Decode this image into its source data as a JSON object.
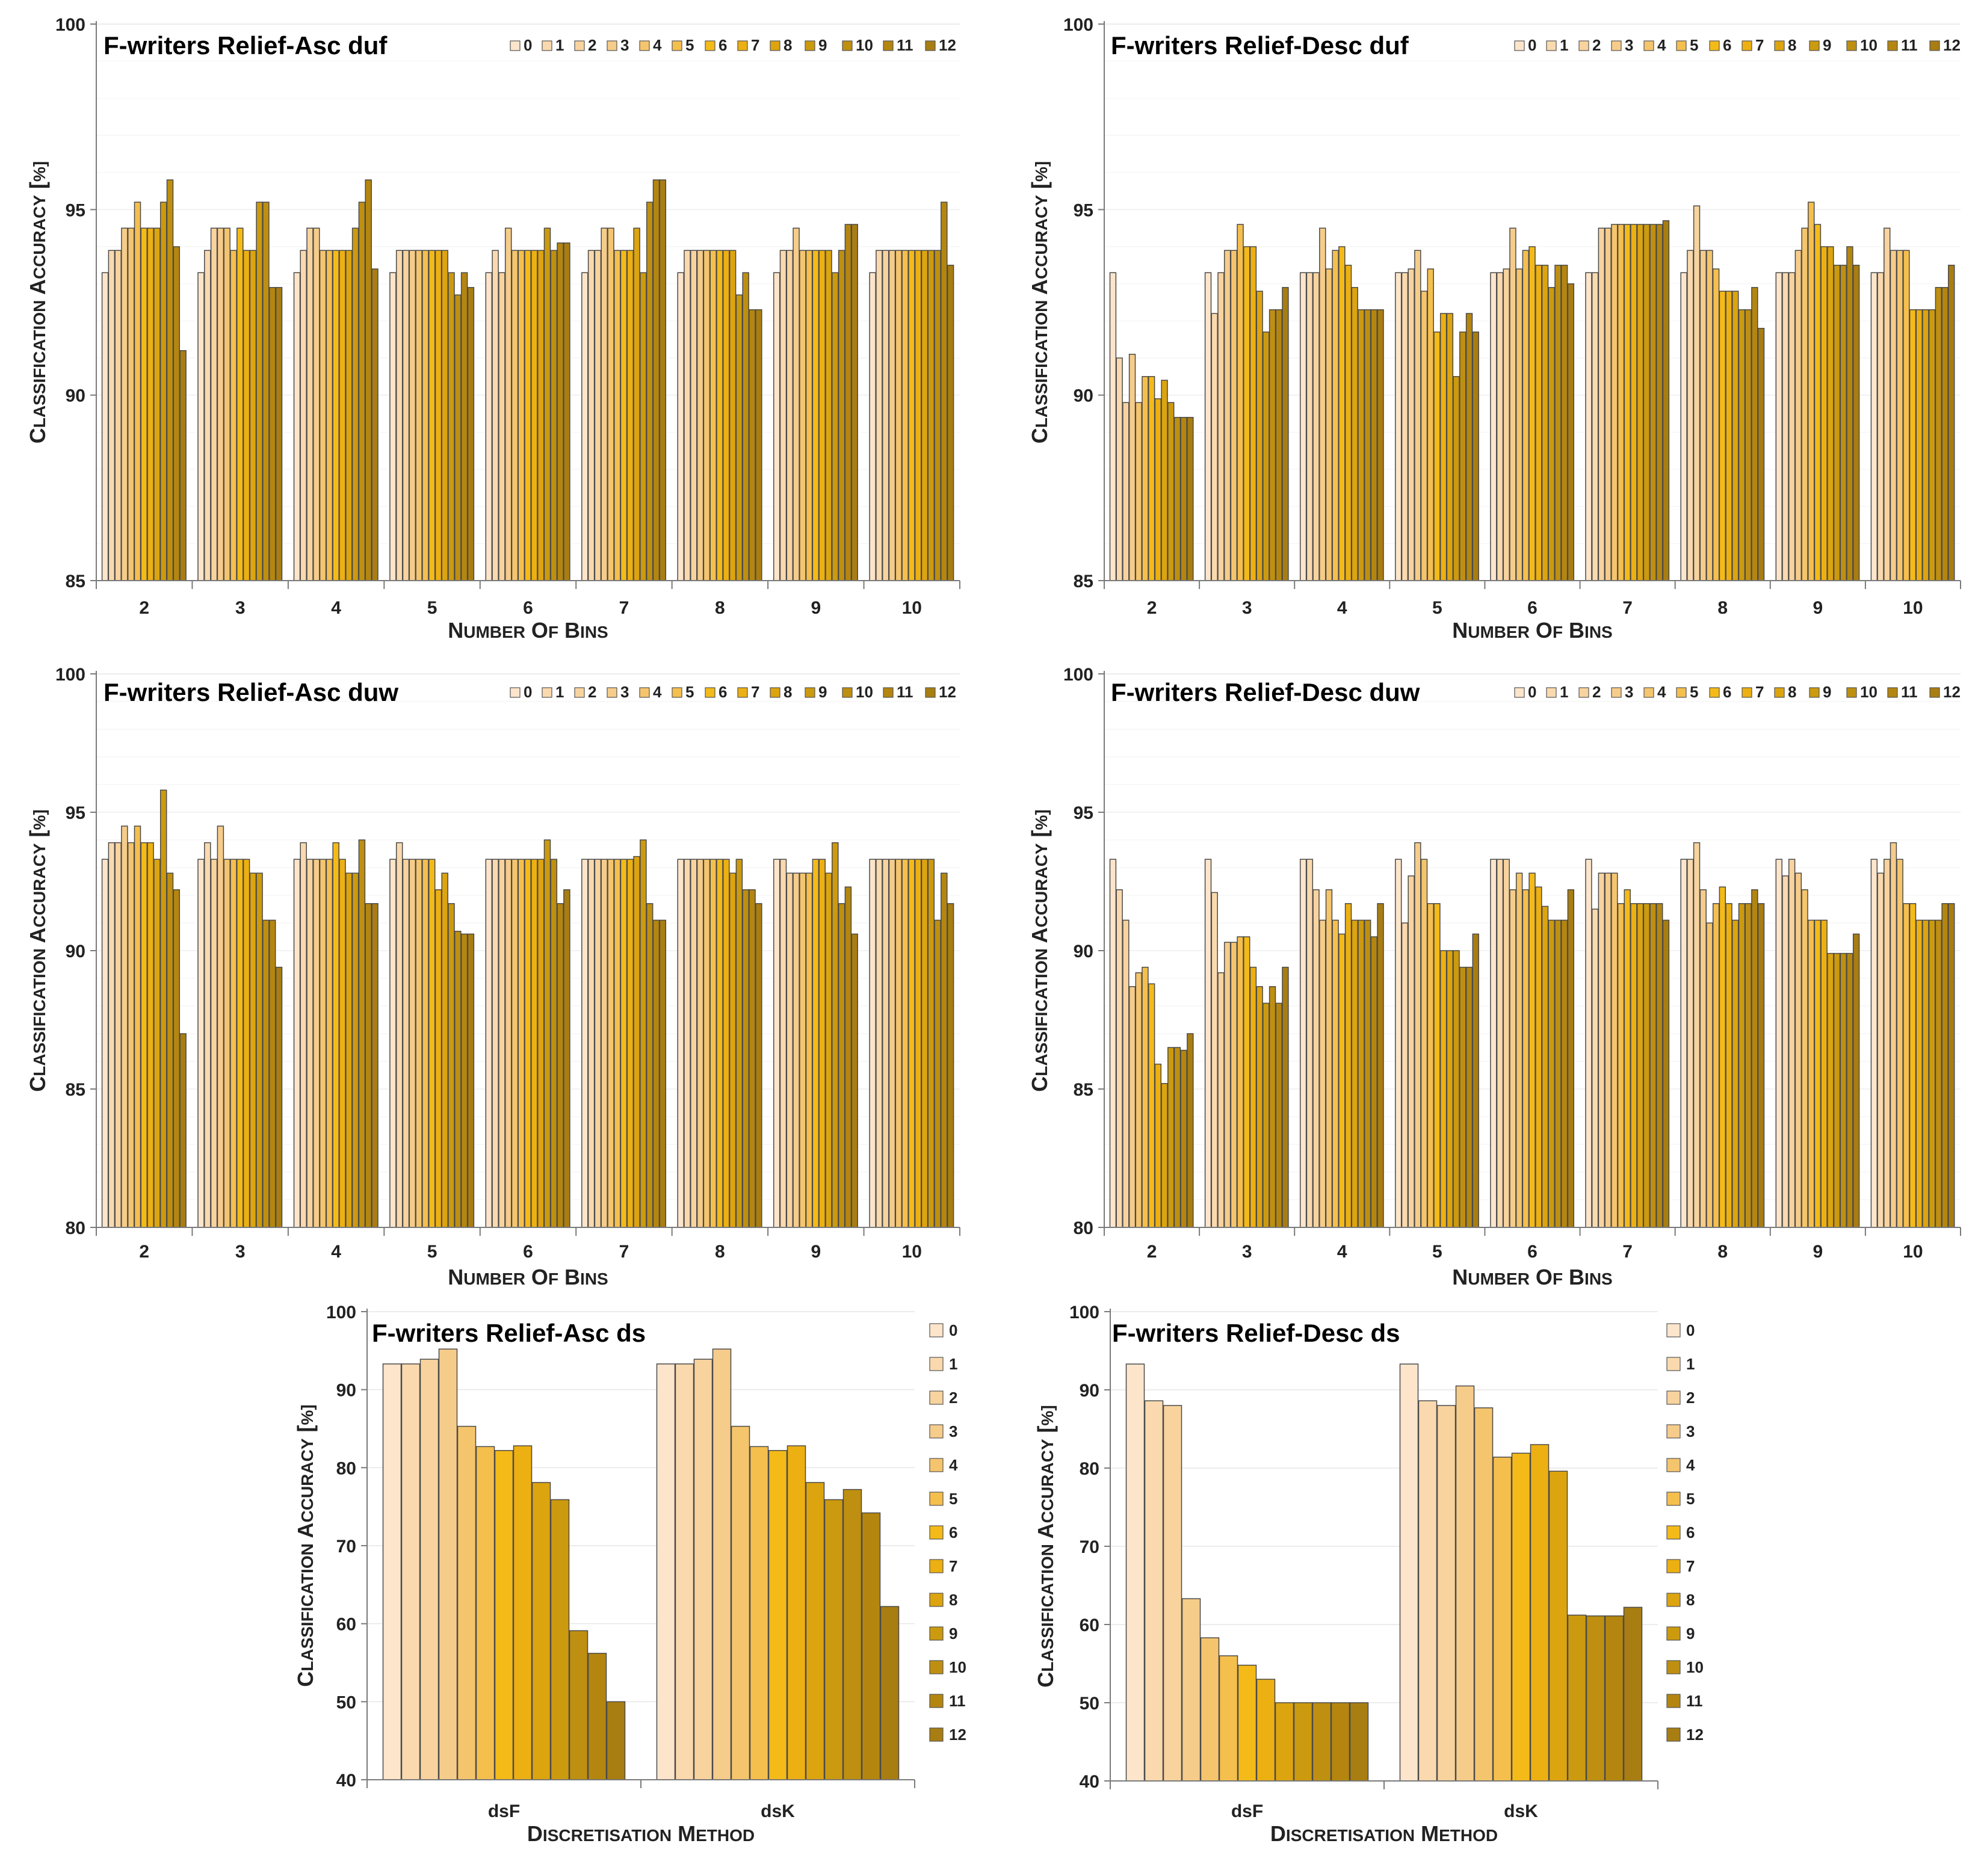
{
  "palette": [
    "#FCE5CB",
    "#FAD9AE",
    "#F8D39E",
    "#F6CC8A",
    "#F5C56D",
    "#F5BF4E",
    "#F4BA18",
    "#EDB012",
    "#DCA40F",
    "#CC9A0E",
    "#BE8F10",
    "#B48610",
    "#A87D12"
  ],
  "chart_data": [
    {
      "type": "bar",
      "title": "F-writers Relief-Asc duf",
      "xlabel": "Number of bins",
      "ylabel": "Classification accuracy [%]",
      "ylim": [
        85,
        100
      ],
      "yticks": [
        85,
        90,
        95,
        100
      ],
      "legend_position": "top-right",
      "categories": [
        "2",
        "3",
        "4",
        "5",
        "6",
        "7",
        "8",
        "9",
        "10"
      ],
      "series": [
        {
          "name": "0",
          "values": [
            93.3,
            93.3,
            93.3,
            93.3,
            93.3,
            93.3,
            93.3,
            93.3,
            93.3
          ]
        },
        {
          "name": "1",
          "values": [
            93.9,
            93.9,
            93.9,
            93.9,
            93.9,
            93.9,
            93.9,
            93.9,
            93.9
          ]
        },
        {
          "name": "2",
          "values": [
            93.9,
            94.5,
            94.5,
            93.9,
            93.3,
            93.9,
            93.9,
            93.9,
            93.9
          ]
        },
        {
          "name": "3",
          "values": [
            94.5,
            94.5,
            94.5,
            93.9,
            94.5,
            94.5,
            93.9,
            94.5,
            93.9
          ]
        },
        {
          "name": "4",
          "values": [
            94.5,
            94.5,
            93.9,
            93.9,
            93.9,
            94.5,
            93.9,
            93.9,
            93.9
          ]
        },
        {
          "name": "5",
          "values": [
            95.2,
            93.9,
            93.9,
            93.9,
            93.9,
            93.9,
            93.9,
            93.9,
            93.9
          ]
        },
        {
          "name": "6",
          "values": [
            94.5,
            94.5,
            93.9,
            93.9,
            93.9,
            93.9,
            93.9,
            93.9,
            93.9
          ]
        },
        {
          "name": "7",
          "values": [
            94.5,
            93.9,
            93.9,
            93.9,
            93.9,
            93.9,
            93.9,
            93.9,
            93.9
          ]
        },
        {
          "name": "8",
          "values": [
            94.5,
            93.9,
            93.9,
            93.9,
            93.9,
            94.5,
            93.9,
            93.9,
            93.9
          ]
        },
        {
          "name": "9",
          "values": [
            95.2,
            95.2,
            94.5,
            93.3,
            94.5,
            93.3,
            92.7,
            93.3,
            93.9
          ]
        },
        {
          "name": "10",
          "values": [
            95.8,
            95.2,
            95.2,
            92.7,
            93.9,
            95.2,
            93.3,
            93.9,
            93.9
          ]
        },
        {
          "name": "11",
          "values": [
            94.0,
            92.9,
            95.8,
            93.3,
            94.1,
            95.8,
            92.3,
            94.6,
            95.2
          ]
        },
        {
          "name": "12",
          "values": [
            91.2,
            92.9,
            93.4,
            92.9,
            94.1,
            95.8,
            92.3,
            94.6,
            93.5
          ]
        }
      ]
    },
    {
      "type": "bar",
      "title": "F-writers Relief-Desc duf",
      "xlabel": "Number of bins",
      "ylabel": "Classification accuracy [%]",
      "ylim": [
        85,
        100
      ],
      "yticks": [
        85,
        90,
        95,
        100
      ],
      "legend_position": "top-right",
      "categories": [
        "2",
        "3",
        "4",
        "5",
        "6",
        "7",
        "8",
        "9",
        "10"
      ],
      "series": [
        {
          "name": "0",
          "values": [
            93.3,
            93.3,
            93.3,
            93.3,
            93.3,
            93.3,
            93.3,
            93.3,
            93.3
          ]
        },
        {
          "name": "1",
          "values": [
            91.0,
            92.2,
            93.3,
            93.3,
            93.3,
            93.3,
            93.9,
            93.3,
            93.3
          ]
        },
        {
          "name": "2",
          "values": [
            89.8,
            93.3,
            93.3,
            93.4,
            93.4,
            94.5,
            95.1,
            93.3,
            94.5
          ]
        },
        {
          "name": "3",
          "values": [
            91.1,
            93.9,
            94.5,
            93.9,
            94.5,
            94.5,
            93.9,
            93.9,
            93.9
          ]
        },
        {
          "name": "4",
          "values": [
            89.8,
            93.9,
            93.4,
            92.8,
            93.4,
            94.6,
            93.9,
            94.5,
            93.9
          ]
        },
        {
          "name": "5",
          "values": [
            90.5,
            94.6,
            93.9,
            93.4,
            93.9,
            94.6,
            93.4,
            95.2,
            93.9
          ]
        },
        {
          "name": "6",
          "values": [
            90.5,
            94.0,
            94.0,
            91.7,
            94.0,
            94.6,
            92.8,
            94.6,
            92.3
          ]
        },
        {
          "name": "7",
          "values": [
            89.9,
            94.0,
            93.5,
            92.2,
            93.5,
            94.6,
            92.8,
            94.0,
            92.3
          ]
        },
        {
          "name": "8",
          "values": [
            90.4,
            92.8,
            92.9,
            92.2,
            93.5,
            94.6,
            92.8,
            94.0,
            92.3
          ]
        },
        {
          "name": "9",
          "values": [
            89.8,
            91.7,
            92.3,
            90.5,
            92.9,
            94.6,
            92.3,
            93.5,
            92.3
          ]
        },
        {
          "name": "10",
          "values": [
            89.4,
            92.3,
            92.3,
            91.7,
            93.5,
            94.6,
            92.3,
            93.5,
            92.9
          ]
        },
        {
          "name": "11",
          "values": [
            89.4,
            92.3,
            92.3,
            92.2,
            93.5,
            94.6,
            92.9,
            94.0,
            92.9
          ]
        },
        {
          "name": "12",
          "values": [
            89.4,
            92.9,
            92.3,
            91.7,
            93.0,
            94.7,
            91.8,
            93.5,
            93.5
          ]
        }
      ]
    },
    {
      "type": "bar",
      "title": "F-writers Relief-Asc duw",
      "xlabel": "Number of bins",
      "ylabel": "Classification accuracy [%]",
      "ylim": [
        80,
        100
      ],
      "yticks": [
        80,
        85,
        90,
        95,
        100
      ],
      "legend_position": "top-right",
      "categories": [
        "2",
        "3",
        "4",
        "5",
        "6",
        "7",
        "8",
        "9",
        "10"
      ],
      "series": [
        {
          "name": "0",
          "values": [
            93.3,
            93.3,
            93.3,
            93.3,
            93.3,
            93.3,
            93.3,
            93.3,
            93.3
          ]
        },
        {
          "name": "1",
          "values": [
            93.9,
            93.9,
            93.9,
            93.9,
            93.3,
            93.3,
            93.3,
            93.3,
            93.3
          ]
        },
        {
          "name": "2",
          "values": [
            93.9,
            93.3,
            93.3,
            93.3,
            93.3,
            93.3,
            93.3,
            92.8,
            93.3
          ]
        },
        {
          "name": "3",
          "values": [
            94.5,
            94.5,
            93.3,
            93.3,
            93.3,
            93.3,
            93.3,
            92.8,
            93.3
          ]
        },
        {
          "name": "4",
          "values": [
            93.9,
            93.3,
            93.3,
            93.3,
            93.3,
            93.3,
            93.3,
            92.8,
            93.3
          ]
        },
        {
          "name": "5",
          "values": [
            94.5,
            93.3,
            93.3,
            93.3,
            93.3,
            93.3,
            93.3,
            92.8,
            93.3
          ]
        },
        {
          "name": "6",
          "values": [
            93.9,
            93.3,
            93.9,
            93.3,
            93.3,
            93.3,
            93.3,
            93.3,
            93.3
          ]
        },
        {
          "name": "7",
          "values": [
            93.9,
            93.3,
            93.3,
            92.2,
            93.3,
            93.3,
            93.3,
            93.3,
            93.3
          ]
        },
        {
          "name": "8",
          "values": [
            93.3,
            92.8,
            92.8,
            92.8,
            93.3,
            93.4,
            92.8,
            92.8,
            93.3
          ]
        },
        {
          "name": "9",
          "values": [
            95.8,
            92.8,
            92.8,
            91.7,
            94.0,
            94.0,
            93.3,
            93.9,
            93.3
          ]
        },
        {
          "name": "10",
          "values": [
            92.8,
            91.1,
            94.0,
            90.7,
            93.3,
            91.7,
            92.2,
            91.7,
            91.1
          ]
        },
        {
          "name": "11",
          "values": [
            92.2,
            91.1,
            91.7,
            90.6,
            91.7,
            91.1,
            92.2,
            92.3,
            92.8
          ]
        },
        {
          "name": "12",
          "values": [
            87.0,
            89.4,
            91.7,
            90.6,
            92.2,
            91.1,
            91.7,
            90.6,
            91.7
          ]
        }
      ]
    },
    {
      "type": "bar",
      "title": "F-writers Relief-Desc duw",
      "xlabel": "Number of bins",
      "ylabel": "Classification accuracy [%]",
      "ylim": [
        80,
        100
      ],
      "yticks": [
        80,
        85,
        90,
        95,
        100
      ],
      "legend_position": "top-right",
      "categories": [
        "2",
        "3",
        "4",
        "5",
        "6",
        "7",
        "8",
        "9",
        "10"
      ],
      "series": [
        {
          "name": "0",
          "values": [
            93.3,
            93.3,
            93.3,
            93.3,
            93.3,
            93.3,
            93.3,
            93.3,
            93.3
          ]
        },
        {
          "name": "1",
          "values": [
            92.2,
            92.1,
            93.3,
            91.0,
            93.3,
            91.5,
            93.3,
            92.7,
            92.8
          ]
        },
        {
          "name": "2",
          "values": [
            91.1,
            89.2,
            92.2,
            92.7,
            93.3,
            92.8,
            93.9,
            93.3,
            93.3
          ]
        },
        {
          "name": "3",
          "values": [
            88.7,
            90.3,
            91.1,
            93.9,
            92.2,
            92.8,
            92.2,
            92.8,
            93.9
          ]
        },
        {
          "name": "4",
          "values": [
            89.2,
            90.3,
            92.2,
            93.3,
            92.8,
            92.8,
            91.0,
            92.2,
            93.3
          ]
        },
        {
          "name": "5",
          "values": [
            89.4,
            90.5,
            91.1,
            91.7,
            92.2,
            91.7,
            91.7,
            91.1,
            91.7
          ]
        },
        {
          "name": "6",
          "values": [
            88.8,
            90.5,
            90.6,
            91.7,
            92.8,
            92.2,
            92.3,
            91.1,
            91.7
          ]
        },
        {
          "name": "7",
          "values": [
            85.9,
            89.4,
            91.7,
            90.0,
            92.3,
            91.7,
            91.7,
            91.1,
            91.1
          ]
        },
        {
          "name": "8",
          "values": [
            85.2,
            88.7,
            91.1,
            90.0,
            91.6,
            91.7,
            91.1,
            89.9,
            91.1
          ]
        },
        {
          "name": "9",
          "values": [
            86.5,
            88.1,
            91.1,
            90.0,
            91.1,
            91.7,
            91.7,
            89.9,
            91.1
          ]
        },
        {
          "name": "10",
          "values": [
            86.5,
            88.7,
            91.1,
            89.4,
            91.1,
            91.7,
            91.7,
            89.9,
            91.1
          ]
        },
        {
          "name": "11",
          "values": [
            86.4,
            88.1,
            90.5,
            89.4,
            91.1,
            91.7,
            92.2,
            89.9,
            91.7
          ]
        },
        {
          "name": "12",
          "values": [
            87.0,
            89.4,
            91.7,
            90.6,
            92.2,
            91.1,
            91.7,
            90.6,
            91.7
          ]
        }
      ]
    },
    {
      "type": "bar",
      "title": "F-writers Relief-Asc ds",
      "xlabel": "Discretisation method",
      "ylabel": "Classification accuracy [%]",
      "ylim": [
        40,
        100
      ],
      "yticks": [
        40,
        50,
        60,
        70,
        80,
        90,
        100
      ],
      "legend_position": "right",
      "categories": [
        "dsF",
        "dsK"
      ],
      "series": [
        {
          "name": "0",
          "values": [
            93.3,
            93.3
          ]
        },
        {
          "name": "1",
          "values": [
            93.3,
            93.3
          ]
        },
        {
          "name": "2",
          "values": [
            93.9,
            93.9
          ]
        },
        {
          "name": "3",
          "values": [
            95.2,
            95.2
          ]
        },
        {
          "name": "4",
          "values": [
            85.3,
            85.3
          ]
        },
        {
          "name": "5",
          "values": [
            82.7,
            82.7
          ]
        },
        {
          "name": "6",
          "values": [
            82.2,
            82.2
          ]
        },
        {
          "name": "7",
          "values": [
            82.8,
            82.8
          ]
        },
        {
          "name": "8",
          "values": [
            78.1,
            78.1
          ]
        },
        {
          "name": "9",
          "values": [
            75.9,
            75.9
          ]
        },
        {
          "name": "10",
          "values": [
            59.1,
            77.2
          ]
        },
        {
          "name": "11",
          "values": [
            56.2,
            74.2
          ]
        },
        {
          "name": "12",
          "values": [
            50.0,
            62.2
          ]
        }
      ]
    },
    {
      "type": "bar",
      "title": "F-writers Relief-Desc ds",
      "xlabel": "Discretisation method",
      "ylabel": "Classification accuracy [%]",
      "ylim": [
        40,
        100
      ],
      "yticks": [
        40,
        50,
        60,
        70,
        80,
        90,
        100
      ],
      "legend_position": "right",
      "categories": [
        "dsF",
        "dsK"
      ],
      "series": [
        {
          "name": "0",
          "values": [
            93.3,
            93.3
          ]
        },
        {
          "name": "1",
          "values": [
            88.6,
            88.6
          ]
        },
        {
          "name": "2",
          "values": [
            88.0,
            88.0
          ]
        },
        {
          "name": "3",
          "values": [
            63.3,
            90.5
          ]
        },
        {
          "name": "4",
          "values": [
            58.3,
            87.7
          ]
        },
        {
          "name": "5",
          "values": [
            56.0,
            81.4
          ]
        },
        {
          "name": "6",
          "values": [
            54.8,
            81.9
          ]
        },
        {
          "name": "7",
          "values": [
            53.0,
            83.0
          ]
        },
        {
          "name": "8",
          "values": [
            50.0,
            79.6
          ]
        },
        {
          "name": "9",
          "values": [
            50.0,
            61.2
          ]
        },
        {
          "name": "10",
          "values": [
            50.0,
            61.1
          ]
        },
        {
          "name": "11",
          "values": [
            50.0,
            61.1
          ]
        },
        {
          "name": "12",
          "values": [
            50.0,
            62.2
          ]
        }
      ]
    }
  ]
}
